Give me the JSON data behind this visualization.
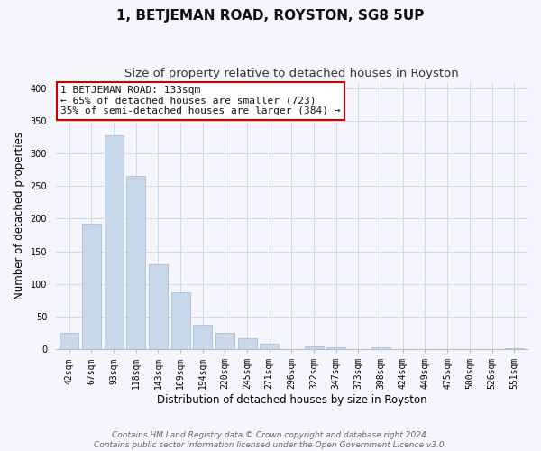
{
  "title": "1, BETJEMAN ROAD, ROYSTON, SG8 5UP",
  "subtitle": "Size of property relative to detached houses in Royston",
  "xlabel": "Distribution of detached houses by size in Royston",
  "ylabel": "Number of detached properties",
  "footer_line1": "Contains HM Land Registry data © Crown copyright and database right 2024.",
  "footer_line2": "Contains public sector information licensed under the Open Government Licence v3.0.",
  "bar_labels": [
    "42sqm",
    "67sqm",
    "93sqm",
    "118sqm",
    "143sqm",
    "169sqm",
    "194sqm",
    "220sqm",
    "245sqm",
    "271sqm",
    "296sqm",
    "322sqm",
    "347sqm",
    "373sqm",
    "398sqm",
    "424sqm",
    "449sqm",
    "475sqm",
    "500sqm",
    "526sqm",
    "551sqm"
  ],
  "bar_values": [
    25,
    193,
    328,
    265,
    130,
    88,
    37,
    25,
    17,
    8,
    0,
    4,
    3,
    0,
    3,
    0,
    0,
    0,
    0,
    0,
    2
  ],
  "bar_color": "#c8d8ea",
  "bar_edge_color": "#a8c0d8",
  "annotation_title": "1 BETJEMAN ROAD: 133sqm",
  "annotation_line2": "← 65% of detached houses are smaller (723)",
  "annotation_line3": "35% of semi-detached houses are larger (384) →",
  "annotation_box_facecolor": "#ffffff",
  "annotation_box_edgecolor": "#cc0000",
  "ylim": [
    0,
    410
  ],
  "yticks": [
    0,
    50,
    100,
    150,
    200,
    250,
    300,
    350,
    400
  ],
  "grid_color": "#d0d8e8",
  "background_color": "#f4f6fb",
  "title_fontsize": 11,
  "subtitle_fontsize": 9.5,
  "axis_label_fontsize": 8.5,
  "tick_fontsize": 7,
  "annotation_fontsize": 8,
  "footer_fontsize": 6.5
}
